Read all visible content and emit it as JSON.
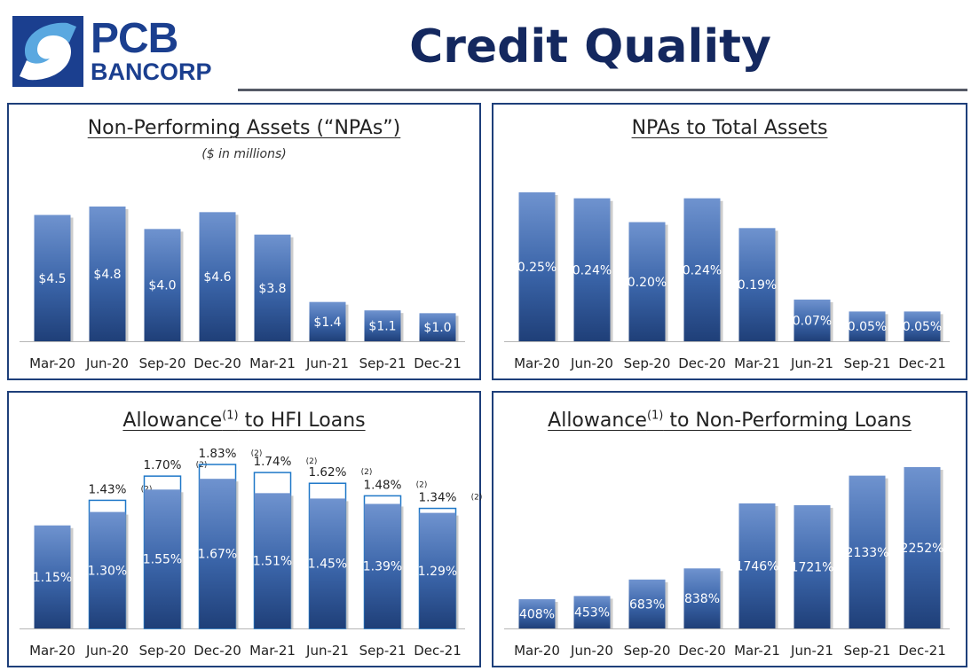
{
  "header": {
    "logo_line1": "PCB",
    "logo_line2": "BANCORP",
    "title": "Credit Quality"
  },
  "colors": {
    "bar_top": "#6f93cf",
    "bar_mid": "#3a64a8",
    "bar_bottom": "#1f3f78",
    "outline": "#1f78c8",
    "frame": "#1e3f7a",
    "title_navy": "#14285f"
  },
  "chart_data": [
    {
      "id": "npa",
      "type": "bar",
      "title": "Non-Performing Assets (“NPAs”)",
      "subtitle": "($ in millions)",
      "categories": [
        "Mar-20",
        "Jun-20",
        "Sep-20",
        "Dec-20",
        "Mar-21",
        "Jun-21",
        "Sep-21",
        "Dec-21"
      ],
      "values": [
        4.5,
        4.8,
        4.0,
        4.6,
        3.8,
        1.4,
        1.1,
        1.0
      ],
      "labels": [
        "$4.5",
        "$4.8",
        "$4.0",
        "$4.6",
        "$3.8",
        "$1.4",
        "$1.1",
        "$1.0"
      ],
      "ylim": [
        0,
        4.8
      ]
    },
    {
      "id": "npa_ratio",
      "type": "bar",
      "title": "NPAs to Total Assets",
      "categories": [
        "Mar-20",
        "Jun-20",
        "Sep-20",
        "Dec-20",
        "Mar-21",
        "Jun-21",
        "Sep-21",
        "Dec-21"
      ],
      "values": [
        0.25,
        0.24,
        0.2,
        0.24,
        0.19,
        0.07,
        0.05,
        0.05
      ],
      "labels": [
        "0.25%",
        "0.24%",
        "0.20%",
        "0.24%",
        "0.19%",
        "0.07%",
        "0.05%",
        "0.05%"
      ],
      "ylim": [
        0,
        0.25
      ]
    },
    {
      "id": "allow_hfi",
      "type": "bar",
      "title": "Allowance",
      "title_sup": "(1)",
      "title_rest": " to HFI Loans",
      "categories": [
        "Mar-20",
        "Jun-20",
        "Sep-20",
        "Dec-20",
        "Mar-21",
        "Jun-21",
        "Sep-21",
        "Dec-21"
      ],
      "values": [
        1.15,
        1.3,
        1.55,
        1.67,
        1.51,
        1.45,
        1.39,
        1.29
      ],
      "labels": [
        "1.15%",
        "1.30%",
        "1.55%",
        "1.67%",
        "1.51%",
        "1.45%",
        "1.39%",
        "1.29%"
      ],
      "series": [
        {
          "values": [
            1.15,
            1.3,
            1.55,
            1.67,
            1.51,
            1.45,
            1.39,
            1.29
          ]
        },
        {
          "values": [
            null,
            1.43,
            1.7,
            1.83,
            1.74,
            1.62,
            1.48,
            1.34
          ],
          "labels": [
            null,
            "1.43%",
            "1.70%",
            "1.83%",
            "1.74%",
            "1.62%",
            "1.48%",
            "1.34%"
          ],
          "note": "(2)"
        }
      ],
      "ylim": [
        0,
        1.83
      ]
    },
    {
      "id": "allow_npl",
      "type": "bar",
      "title": "Allowance",
      "title_sup": "(1)",
      "title_rest": " to Non-Performing Loans",
      "categories": [
        "Mar-20",
        "Jun-20",
        "Sep-20",
        "Dec-20",
        "Mar-21",
        "Jun-21",
        "Sep-21",
        "Dec-21"
      ],
      "values": [
        408,
        453,
        683,
        838,
        1746,
        1721,
        2133,
        2252
      ],
      "labels": [
        "408%",
        "453%",
        "683%",
        "838%",
        "1746%",
        "1721%",
        "2133%",
        "2252%"
      ],
      "ylim": [
        0,
        2252
      ]
    }
  ]
}
